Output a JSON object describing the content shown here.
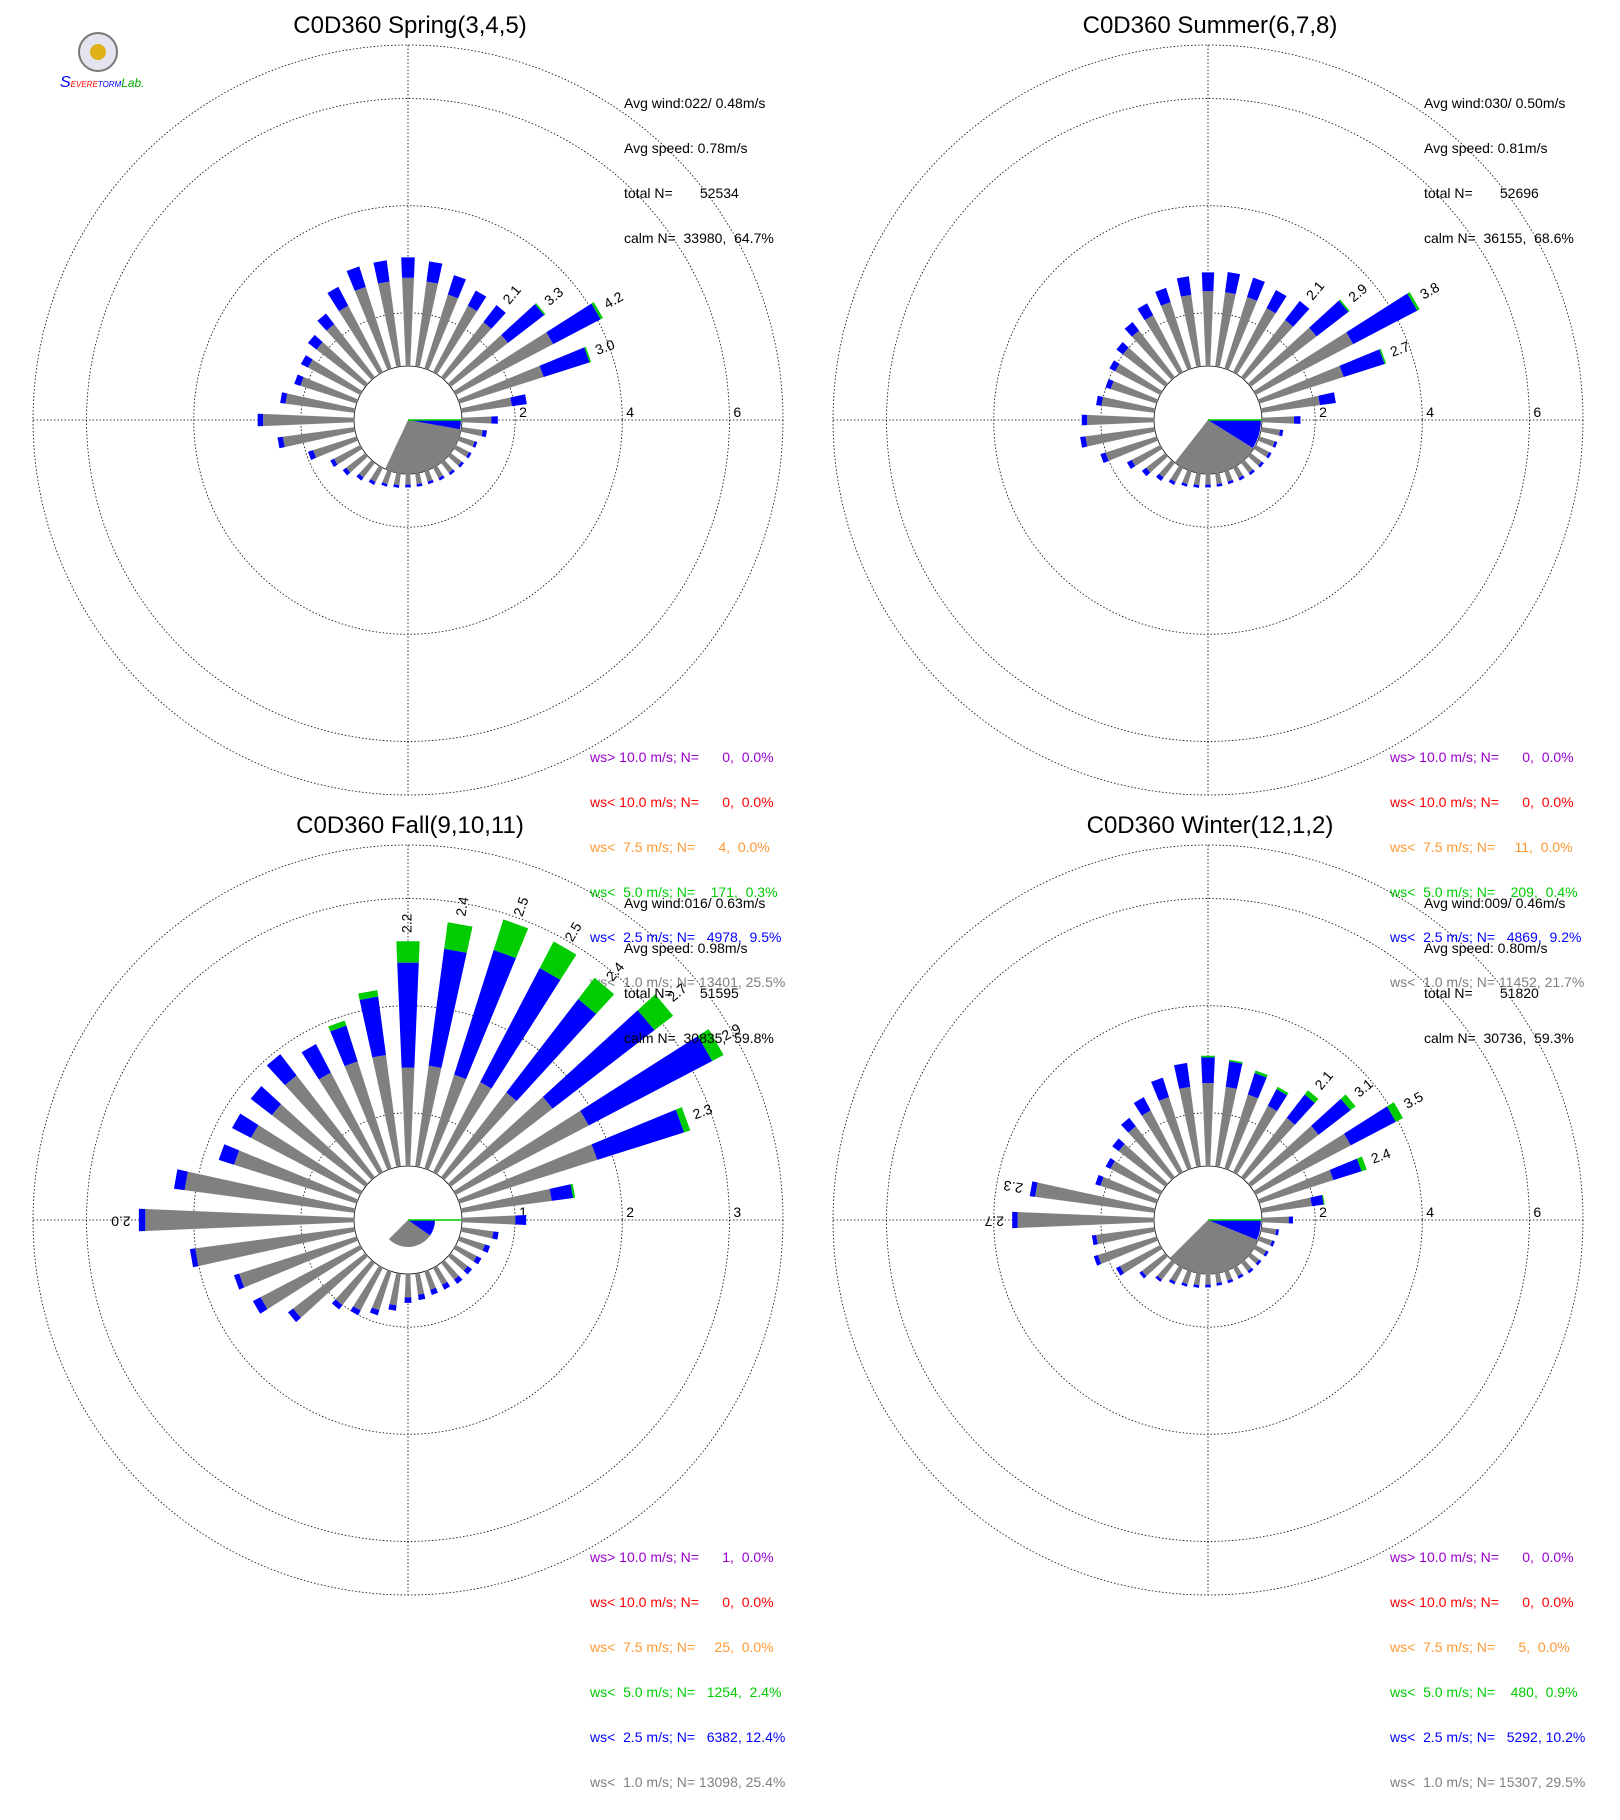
{
  "colors": {
    "calm": "#808080",
    "lt2_5": "#0000ff",
    "lt5": "#00cc00",
    "lt7_5": "#ff9933",
    "lt10": "#ff0000",
    "gt10": "#9900cc"
  },
  "logo": {
    "text_s": "S",
    "text_evere": "EVERE",
    "text_torm": "TORM",
    "text_lab": "Lab."
  },
  "chart_data": [
    {
      "type": "polar-bar",
      "title": "C0D360 Spring(3,4,5)",
      "rings": [
        2,
        4,
        6
      ],
      "rmax": 7,
      "stats": {
        "avg_wind": "Avg wind:022/ 0.48m/s",
        "avg_speed": "Avg speed: 0.78m/s",
        "total": "total N=       52534",
        "calm": "calm N=  33980,  64.7%"
      },
      "legend": [
        {
          "key": "gt10",
          "text": "ws> 10.0 m/s; N=      0,  0.0%"
        },
        {
          "key": "lt10",
          "text": "ws< 10.0 m/s; N=      0,  0.0%"
        },
        {
          "key": "lt7_5",
          "text": "ws<  7.5 m/s; N=      4,  0.0%"
        },
        {
          "key": "lt5",
          "text": "ws<  5.0 m/s; N=    171,  0.3%"
        },
        {
          "key": "lt2_5",
          "text": "ws<  2.5 m/s; N=   4978,  9.5%"
        },
        {
          "key": "calm",
          "text": "ws<  1.0 m/s; N= 13401, 25.5%"
        }
      ],
      "bars": [
        {
          "dir": 0,
          "gray": 1.65,
          "blue": 0.38
        },
        {
          "dir": 10,
          "gray": 1.6,
          "blue": 0.38
        },
        {
          "dir": 20,
          "gray": 1.45,
          "blue": 0.38
        },
        {
          "dir": 30,
          "gray": 1.4,
          "blue": 0.32
        },
        {
          "dir": 40,
          "gray": 1.3,
          "blue": 0.4,
          "label": "2.1"
        },
        {
          "dir": 50,
          "gray": 1.35,
          "blue": 0.85,
          "green": 0.03,
          "label": "3.3"
        },
        {
          "dir": 60,
          "gray": 2.05,
          "blue": 1.0,
          "green": 0.05,
          "label": "4.2"
        },
        {
          "dir": 70,
          "gray": 1.65,
          "blue": 0.9,
          "green": 0.03,
          "label": "3.0"
        },
        {
          "dir": 80,
          "gray": 0.95,
          "blue": 0.28
        },
        {
          "dir": 90,
          "gray": 0.55,
          "blue": 0.12
        },
        {
          "dir": 100,
          "gray": 0.4,
          "blue": 0.08
        },
        {
          "dir": 110,
          "gray": 0.3,
          "blue": 0.05
        },
        {
          "dir": 120,
          "gray": 0.28,
          "blue": 0.05
        },
        {
          "dir": 130,
          "gray": 0.26,
          "blue": 0.05
        },
        {
          "dir": 140,
          "gray": 0.24,
          "blue": 0.05
        },
        {
          "dir": 150,
          "gray": 0.22,
          "blue": 0.05
        },
        {
          "dir": 160,
          "gray": 0.2,
          "blue": 0.05
        },
        {
          "dir": 170,
          "gray": 0.2,
          "blue": 0.05
        },
        {
          "dir": 180,
          "gray": 0.2,
          "blue": 0.05
        },
        {
          "dir": 190,
          "gray": 0.22,
          "blue": 0.05
        },
        {
          "dir": 200,
          "gray": 0.25,
          "blue": 0.05
        },
        {
          "dir": 210,
          "gray": 0.3,
          "blue": 0.06
        },
        {
          "dir": 220,
          "gray": 0.35,
          "blue": 0.07
        },
        {
          "dir": 230,
          "gray": 0.45,
          "blue": 0.08
        },
        {
          "dir": 240,
          "gray": 0.55,
          "blue": 0.08
        },
        {
          "dir": 250,
          "gray": 0.85,
          "blue": 0.1
        },
        {
          "dir": 260,
          "gray": 1.35,
          "blue": 0.1
        },
        {
          "dir": 270,
          "gray": 1.7,
          "blue": 0.1
        },
        {
          "dir": 280,
          "gray": 1.3,
          "blue": 0.1
        },
        {
          "dir": 290,
          "gray": 1.1,
          "blue": 0.12
        },
        {
          "dir": 300,
          "gray": 1.1,
          "blue": 0.15
        },
        {
          "dir": 310,
          "gray": 1.15,
          "blue": 0.2
        },
        {
          "dir": 320,
          "gray": 1.25,
          "blue": 0.25
        },
        {
          "dir": 330,
          "gray": 1.4,
          "blue": 0.4
        },
        {
          "dir": 340,
          "gray": 1.6,
          "blue": 0.4
        },
        {
          "dir": 350,
          "gray": 1.6,
          "blue": 0.4
        }
      ],
      "calm_sector": {
        "blue_end_dir": 100,
        "gray_end_dir": 205,
        "blue_r": 0.98,
        "gray_r": 1.0
      }
    },
    {
      "type": "polar-bar",
      "title": "C0D360 Summer(6,7,8)",
      "rings": [
        2,
        4,
        6
      ],
      "rmax": 7,
      "stats": {
        "avg_wind": "Avg wind:030/ 0.50m/s",
        "avg_speed": "Avg speed: 0.81m/s",
        "total": "total N=       52696",
        "calm": "calm N=  36155,  68.6%"
      },
      "legend": [
        {
          "key": "gt10",
          "text": "ws> 10.0 m/s; N=      0,  0.0%"
        },
        {
          "key": "lt10",
          "text": "ws< 10.0 m/s; N=      0,  0.0%"
        },
        {
          "key": "lt7_5",
          "text": "ws<  7.5 m/s; N=     11,  0.0%"
        },
        {
          "key": "lt5",
          "text": "ws<  5.0 m/s; N=    209,  0.4%"
        },
        {
          "key": "lt2_5",
          "text": "ws<  2.5 m/s; N=   4869,  9.2%"
        },
        {
          "key": "calm",
          "text": "ws<  1.0 m/s; N= 11452, 21.7%"
        }
      ],
      "bars": [
        {
          "dir": 0,
          "gray": 1.4,
          "blue": 0.35
        },
        {
          "dir": 10,
          "gray": 1.4,
          "blue": 0.38
        },
        {
          "dir": 20,
          "gray": 1.4,
          "blue": 0.38
        },
        {
          "dir": 30,
          "gray": 1.35,
          "blue": 0.38
        },
        {
          "dir": 40,
          "gray": 1.35,
          "blue": 0.45,
          "label": "2.1"
        },
        {
          "dir": 50,
          "gray": 1.55,
          "blue": 0.75,
          "green": 0.03,
          "label": "2.9"
        },
        {
          "dir": 60,
          "gray": 2.05,
          "blue": 1.35,
          "green": 0.05,
          "label": "3.8"
        },
        {
          "dir": 70,
          "gray": 1.65,
          "blue": 0.8,
          "green": 0.03,
          "label": "2.7"
        },
        {
          "dir": 80,
          "gray": 1.1,
          "blue": 0.3
        },
        {
          "dir": 90,
          "gray": 0.6,
          "blue": 0.12
        },
        {
          "dir": 100,
          "gray": 0.35,
          "blue": 0.06
        },
        {
          "dir": 110,
          "gray": 0.3,
          "blue": 0.05
        },
        {
          "dir": 120,
          "gray": 0.28,
          "blue": 0.05
        },
        {
          "dir": 130,
          "gray": 0.26,
          "blue": 0.05
        },
        {
          "dir": 140,
          "gray": 0.24,
          "blue": 0.05
        },
        {
          "dir": 150,
          "gray": 0.22,
          "blue": 0.05
        },
        {
          "dir": 160,
          "gray": 0.2,
          "blue": 0.05
        },
        {
          "dir": 170,
          "gray": 0.2,
          "blue": 0.05
        },
        {
          "dir": 180,
          "gray": 0.2,
          "blue": 0.05
        },
        {
          "dir": 190,
          "gray": 0.22,
          "blue": 0.05
        },
        {
          "dir": 200,
          "gray": 0.25,
          "blue": 0.05
        },
        {
          "dir": 210,
          "gray": 0.3,
          "blue": 0.06
        },
        {
          "dir": 220,
          "gray": 0.35,
          "blue": 0.08
        },
        {
          "dir": 230,
          "gray": 0.45,
          "blue": 0.1
        },
        {
          "dir": 240,
          "gray": 0.6,
          "blue": 0.1
        },
        {
          "dir": 250,
          "gray": 1.0,
          "blue": 0.1
        },
        {
          "dir": 260,
          "gray": 1.3,
          "blue": 0.1
        },
        {
          "dir": 270,
          "gray": 1.25,
          "blue": 0.1
        },
        {
          "dir": 280,
          "gray": 1.0,
          "blue": 0.1
        },
        {
          "dir": 290,
          "gray": 0.9,
          "blue": 0.1
        },
        {
          "dir": 300,
          "gray": 0.95,
          "blue": 0.12
        },
        {
          "dir": 310,
          "gray": 1.0,
          "blue": 0.15
        },
        {
          "dir": 320,
          "gray": 1.1,
          "blue": 0.2
        },
        {
          "dir": 330,
          "gray": 1.2,
          "blue": 0.25
        },
        {
          "dir": 340,
          "gray": 1.3,
          "blue": 0.28
        },
        {
          "dir": 350,
          "gray": 1.35,
          "blue": 0.35
        }
      ],
      "calm_sector": {
        "blue_end_dir": 122,
        "gray_end_dir": 218,
        "blue_r": 0.98,
        "gray_r": 1.0
      }
    },
    {
      "type": "polar-bar",
      "title": "C0D360 Fall(9,10,11)",
      "rings": [
        1,
        2,
        3
      ],
      "rmax": 3.5,
      "stats": {
        "avg_wind": "Avg wind:016/ 0.63m/s",
        "avg_speed": "Avg speed: 0.98m/s",
        "total": "total N=       51595",
        "calm": "calm N=  30835,  59.8%"
      },
      "legend": [
        {
          "key": "gt10",
          "text": "ws> 10.0 m/s; N=      1,  0.0%"
        },
        {
          "key": "lt10",
          "text": "ws< 10.0 m/s; N=      0,  0.0%"
        },
        {
          "key": "lt7_5",
          "text": "ws<  7.5 m/s; N=     25,  0.0%"
        },
        {
          "key": "lt5",
          "text": "ws<  5.0 m/s; N=   1254,  2.4%"
        },
        {
          "key": "lt2_5",
          "text": "ws<  2.5 m/s; N=   6382, 12.4%"
        },
        {
          "key": "calm",
          "text": "ws<  1.0 m/s; N= 13098, 25.4%"
        }
      ],
      "bars": [
        {
          "dir": 0,
          "gray": 0.92,
          "blue": 0.98,
          "green": 0.2,
          "label": "2.2"
        },
        {
          "dir": 10,
          "gray": 0.95,
          "blue": 1.1,
          "green": 0.25,
          "label": "2.4"
        },
        {
          "dir": 20,
          "gray": 0.92,
          "blue": 1.22,
          "green": 0.3,
          "label": "2.5"
        },
        {
          "dir": 30,
          "gray": 0.95,
          "blue": 1.2,
          "green": 0.28,
          "label": "2.5"
        },
        {
          "dir": 40,
          "gray": 1.0,
          "blue": 1.1,
          "green": 0.25,
          "label": "2.4"
        },
        {
          "dir": 50,
          "gray": 1.2,
          "blue": 1.2,
          "green": 0.22,
          "label": "2.7"
        },
        {
          "dir": 60,
          "gray": 1.4,
          "blue": 1.3,
          "green": 0.12,
          "label": "2.9"
        },
        {
          "dir": 70,
          "gray": 1.35,
          "blue": 0.85,
          "green": 0.06,
          "label": "2.3"
        },
        {
          "dir": 80,
          "gray": 0.85,
          "blue": 0.2,
          "green": 0.02
        },
        {
          "dir": 90,
          "gray": 0.5,
          "blue": 0.1
        },
        {
          "dir": 100,
          "gray": 0.3,
          "blue": 0.05
        },
        {
          "dir": 110,
          "gray": 0.25,
          "blue": 0.05
        },
        {
          "dir": 120,
          "gray": 0.22,
          "blue": 0.05
        },
        {
          "dir": 130,
          "gray": 0.2,
          "blue": 0.05
        },
        {
          "dir": 140,
          "gray": 0.2,
          "blue": 0.05
        },
        {
          "dir": 150,
          "gray": 0.18,
          "blue": 0.05
        },
        {
          "dir": 160,
          "gray": 0.18,
          "blue": 0.05
        },
        {
          "dir": 170,
          "gray": 0.2,
          "blue": 0.05
        },
        {
          "dir": 180,
          "gray": 0.22,
          "blue": 0.05
        },
        {
          "dir": 190,
          "gray": 0.3,
          "blue": 0.05
        },
        {
          "dir": 200,
          "gray": 0.38,
          "blue": 0.05
        },
        {
          "dir": 210,
          "gray": 0.45,
          "blue": 0.05
        },
        {
          "dir": 220,
          "gray": 0.5,
          "blue": 0.05
        },
        {
          "dir": 230,
          "gray": 0.85,
          "blue": 0.06
        },
        {
          "dir": 240,
          "gray": 1.05,
          "blue": 0.08
        },
        {
          "dir": 250,
          "gray": 1.15,
          "blue": 0.05
        },
        {
          "dir": 260,
          "gray": 1.5,
          "blue": 0.05
        },
        {
          "dir": 270,
          "gray": 1.95,
          "blue": 0.06,
          "label": "2.0"
        },
        {
          "dir": 280,
          "gray": 1.6,
          "blue": 0.1
        },
        {
          "dir": 290,
          "gray": 1.2,
          "blue": 0.15
        },
        {
          "dir": 300,
          "gray": 1.15,
          "blue": 0.2
        },
        {
          "dir": 310,
          "gray": 1.1,
          "blue": 0.25
        },
        {
          "dir": 320,
          "gray": 1.2,
          "blue": 0.25
        },
        {
          "dir": 330,
          "gray": 1.05,
          "blue": 0.3
        },
        {
          "dir": 340,
          "gray": 1.05,
          "blue": 0.35,
          "green": 0.05
        },
        {
          "dir": 350,
          "gray": 1.05,
          "blue": 0.55,
          "green": 0.06
        }
      ],
      "calm_sector": {
        "blue_end_dir": 125,
        "gray_end_dir": 225,
        "blue_r": 0.5,
        "gray_r": 0.5
      }
    },
    {
      "type": "polar-bar",
      "title": "C0D360 Winter(12,1,2)",
      "rings": [
        2,
        4,
        6
      ],
      "rmax": 7,
      "stats": {
        "avg_wind": "Avg wind:009/ 0.46m/s",
        "avg_speed": "Avg speed: 0.80m/s",
        "total": "total N=       51820",
        "calm": "calm N=  30736,  59.3%"
      },
      "legend": [
        {
          "key": "gt10",
          "text": "ws> 10.0 m/s; N=      0,  0.0%"
        },
        {
          "key": "lt10",
          "text": "ws< 10.0 m/s; N=      0,  0.0%"
        },
        {
          "key": "lt7_5",
          "text": "ws<  7.5 m/s; N=      5,  0.0%"
        },
        {
          "key": "lt5",
          "text": "ws<  5.0 m/s; N=    480,  0.9%"
        },
        {
          "key": "lt2_5",
          "text": "ws<  2.5 m/s; N=   5292, 10.2%"
        },
        {
          "key": "calm",
          "text": "ws<  1.0 m/s; N= 15307, 29.5%"
        }
      ],
      "bars": [
        {
          "dir": 0,
          "gray": 1.55,
          "blue": 0.48,
          "green": 0.03
        },
        {
          "dir": 10,
          "gray": 1.5,
          "blue": 0.48,
          "green": 0.03
        },
        {
          "dir": 20,
          "gray": 1.45,
          "blue": 0.42,
          "green": 0.05
        },
        {
          "dir": 30,
          "gray": 1.4,
          "blue": 0.35,
          "green": 0.05
        },
        {
          "dir": 40,
          "gray": 1.4,
          "blue": 0.55,
          "green": 0.1,
          "label": "2.1"
        },
        {
          "dir": 50,
          "gray": 1.6,
          "blue": 0.75,
          "green": 0.12,
          "label": "3.1"
        },
        {
          "dir": 60,
          "gray": 2.0,
          "blue": 0.95,
          "green": 0.15,
          "label": "3.5"
        },
        {
          "dir": 70,
          "gray": 1.45,
          "blue": 0.55,
          "green": 0.1,
          "label": "2.4"
        },
        {
          "dir": 80,
          "gray": 0.95,
          "blue": 0.22,
          "green": 0.02
        },
        {
          "dir": 90,
          "gray": 0.5,
          "blue": 0.08
        },
        {
          "dir": 100,
          "gray": 0.28,
          "blue": 0.05
        },
        {
          "dir": 110,
          "gray": 0.25,
          "blue": 0.05
        },
        {
          "dir": 120,
          "gray": 0.22,
          "blue": 0.05
        },
        {
          "dir": 130,
          "gray": 0.2,
          "blue": 0.05
        },
        {
          "dir": 140,
          "gray": 0.2,
          "blue": 0.05
        },
        {
          "dir": 150,
          "gray": 0.18,
          "blue": 0.05
        },
        {
          "dir": 160,
          "gray": 0.18,
          "blue": 0.05
        },
        {
          "dir": 170,
          "gray": 0.18,
          "blue": 0.05
        },
        {
          "dir": 180,
          "gray": 0.2,
          "blue": 0.05
        },
        {
          "dir": 190,
          "gray": 0.22,
          "blue": 0.05
        },
        {
          "dir": 200,
          "gray": 0.25,
          "blue": 0.05
        },
        {
          "dir": 210,
          "gray": 0.3,
          "blue": 0.05
        },
        {
          "dir": 220,
          "gray": 0.4,
          "blue": 0.05
        },
        {
          "dir": 230,
          "gray": 0.55,
          "blue": 0.06
        },
        {
          "dir": 240,
          "gray": 0.85,
          "blue": 0.08
        },
        {
          "dir": 250,
          "gray": 1.15,
          "blue": 0.08
        },
        {
          "dir": 260,
          "gray": 1.1,
          "blue": 0.08
        },
        {
          "dir": 270,
          "gray": 2.55,
          "blue": 0.1,
          "label": "2.7"
        },
        {
          "dir": 280,
          "gray": 2.25,
          "blue": 0.1,
          "label": "2.3"
        },
        {
          "dir": 290,
          "gray": 1.1,
          "blue": 0.1
        },
        {
          "dir": 300,
          "gray": 1.05,
          "blue": 0.1
        },
        {
          "dir": 310,
          "gray": 1.1,
          "blue": 0.15
        },
        {
          "dir": 320,
          "gray": 1.2,
          "blue": 0.2
        },
        {
          "dir": 330,
          "gray": 1.3,
          "blue": 0.28
        },
        {
          "dir": 340,
          "gray": 1.4,
          "blue": 0.38
        },
        {
          "dir": 350,
          "gray": 1.5,
          "blue": 0.45
        }
      ],
      "calm_sector": {
        "blue_end_dir": 112,
        "gray_end_dir": 225,
        "blue_r": 0.98,
        "gray_r": 1.0
      }
    }
  ]
}
